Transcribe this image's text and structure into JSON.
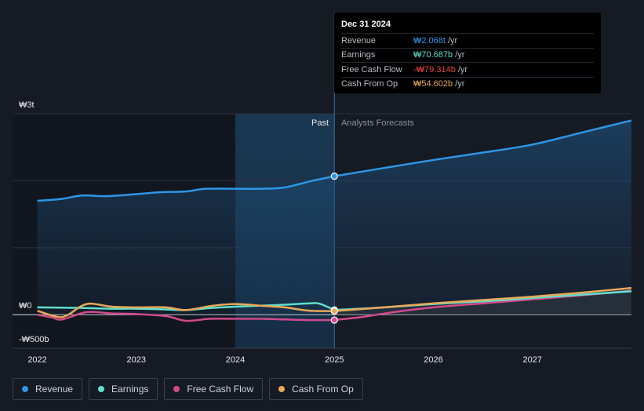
{
  "chart_data": {
    "type": "line",
    "currency": "₩",
    "y_axis": {
      "max_label": "₩3t",
      "zero_label": "₩0",
      "min_label": "-₩500b",
      "ylim": [
        -500,
        3000
      ],
      "unit": "b"
    },
    "x_axis": {
      "ticks": [
        "2022",
        "2023",
        "2024",
        "2025",
        "2026",
        "2027"
      ],
      "range": [
        2021.75,
        2028.0
      ]
    },
    "regions": {
      "past_label": "Past",
      "forecast_label": "Analysts Forecasts",
      "divider_x": 2025.0,
      "highlight_start": 2024.0
    },
    "series": [
      {
        "name": "Revenue",
        "color": "#2e95e6",
        "points": [
          [
            2022.0,
            1700
          ],
          [
            2022.25,
            1730
          ],
          [
            2022.45,
            1780
          ],
          [
            2022.7,
            1770
          ],
          [
            2023.0,
            1800
          ],
          [
            2023.25,
            1830
          ],
          [
            2023.5,
            1840
          ],
          [
            2023.7,
            1880
          ],
          [
            2024.0,
            1880
          ],
          [
            2024.25,
            1880
          ],
          [
            2024.5,
            1900
          ],
          [
            2024.75,
            1990
          ],
          [
            2025.0,
            2068
          ]
        ],
        "forecast": [
          [
            2025.0,
            2068
          ],
          [
            2025.5,
            2190
          ],
          [
            2026.0,
            2310
          ],
          [
            2026.5,
            2420
          ],
          [
            2027.0,
            2540
          ],
          [
            2027.5,
            2720
          ],
          [
            2028.0,
            2900
          ]
        ]
      },
      {
        "name": "Earnings",
        "color": "#5fe0cc",
        "points": [
          [
            2022.0,
            110
          ],
          [
            2022.3,
            105
          ],
          [
            2022.5,
            100
          ],
          [
            2022.75,
            90
          ],
          [
            2023.0,
            90
          ],
          [
            2023.3,
            80
          ],
          [
            2023.5,
            70
          ],
          [
            2023.75,
            100
          ],
          [
            2024.0,
            120
          ],
          [
            2024.25,
            135
          ],
          [
            2024.5,
            150
          ],
          [
            2024.75,
            170
          ],
          [
            2024.85,
            165
          ],
          [
            2025.0,
            70.687
          ]
        ],
        "forecast": [
          [
            2025.0,
            70.687
          ],
          [
            2025.5,
            110
          ],
          [
            2026.0,
            160
          ],
          [
            2026.5,
            200
          ],
          [
            2027.0,
            250
          ],
          [
            2027.5,
            300
          ],
          [
            2028.0,
            350
          ]
        ]
      },
      {
        "name": "Free Cash Flow",
        "color": "#d14a8c",
        "points": [
          [
            2022.0,
            0
          ],
          [
            2022.15,
            -40
          ],
          [
            2022.25,
            -70
          ],
          [
            2022.5,
            40
          ],
          [
            2022.75,
            20
          ],
          [
            2023.0,
            10
          ],
          [
            2023.3,
            -20
          ],
          [
            2023.5,
            -90
          ],
          [
            2023.75,
            -60
          ],
          [
            2024.0,
            -60
          ],
          [
            2024.25,
            -60
          ],
          [
            2024.5,
            -70
          ],
          [
            2024.75,
            -80
          ],
          [
            2025.0,
            -79.314
          ]
        ],
        "forecast": [
          [
            2025.0,
            -79.314
          ],
          [
            2025.3,
            -30
          ],
          [
            2025.6,
            40
          ],
          [
            2026.0,
            110
          ],
          [
            2026.5,
            170
          ],
          [
            2027.0,
            230
          ],
          [
            2027.5,
            290
          ],
          [
            2028.0,
            360
          ]
        ]
      },
      {
        "name": "Cash From Op",
        "color": "#e8a95a",
        "points": [
          [
            2022.0,
            60
          ],
          [
            2022.2,
            -30
          ],
          [
            2022.3,
            -10
          ],
          [
            2022.5,
            160
          ],
          [
            2022.75,
            120
          ],
          [
            2023.0,
            110
          ],
          [
            2023.3,
            110
          ],
          [
            2023.5,
            70
          ],
          [
            2023.75,
            130
          ],
          [
            2024.0,
            160
          ],
          [
            2024.3,
            130
          ],
          [
            2024.5,
            110
          ],
          [
            2024.75,
            60
          ],
          [
            2025.0,
            54.602
          ]
        ],
        "forecast": [
          [
            2025.0,
            54.602
          ],
          [
            2025.5,
            110
          ],
          [
            2026.0,
            170
          ],
          [
            2026.5,
            220
          ],
          [
            2027.0,
            270
          ],
          [
            2027.5,
            330
          ],
          [
            2028.0,
            400
          ]
        ]
      }
    ]
  },
  "tooltip": {
    "date": "Dec 31 2024",
    "rows": [
      {
        "label": "Revenue",
        "value": "₩2.068t",
        "unit": "/yr",
        "color": "#2e95e6"
      },
      {
        "label": "Earnings",
        "value": "₩70.687b",
        "unit": "/yr",
        "color": "#5fe0cc"
      },
      {
        "label": "Free Cash Flow",
        "value": "-₩79.314b",
        "unit": "/yr",
        "color": "#e64545"
      },
      {
        "label": "Cash From Op",
        "value": "₩54.602b",
        "unit": "/yr",
        "color": "#e8a95a"
      }
    ]
  },
  "legend": [
    {
      "label": "Revenue",
      "color": "#2e95e6"
    },
    {
      "label": "Earnings",
      "color": "#5fe0cc"
    },
    {
      "label": "Free Cash Flow",
      "color": "#d14a8c"
    },
    {
      "label": "Cash From Op",
      "color": "#e8a95a"
    }
  ]
}
